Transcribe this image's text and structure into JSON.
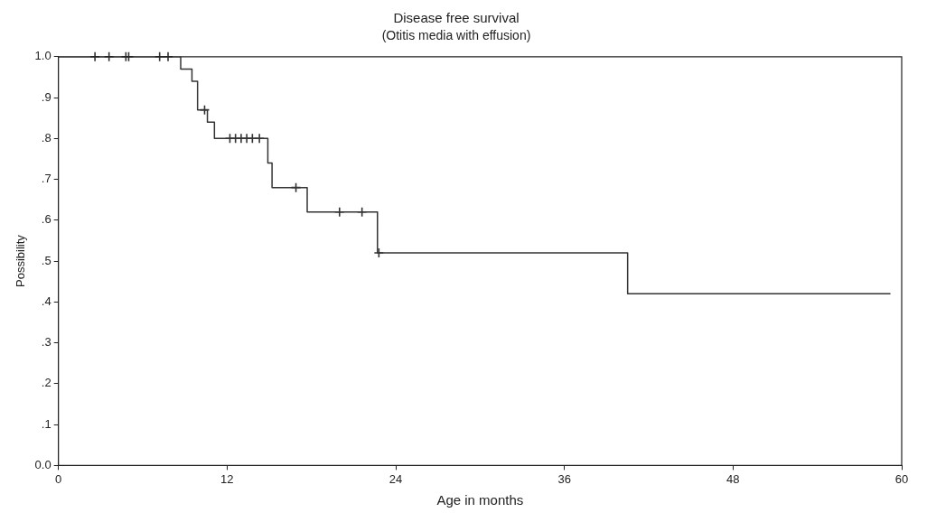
{
  "chart_data": {
    "type": "step",
    "title": "Disease free survival",
    "subtitle": "(Otitis media with effusion)",
    "xlabel": "Age in months",
    "ylabel": "Possibility",
    "xlim": [
      0,
      60
    ],
    "xticks": [
      0,
      12,
      24,
      36,
      48,
      60
    ],
    "ylim": [
      0,
      1
    ],
    "yticks": [
      {
        "value": 0,
        "label": "0.0"
      },
      {
        "value": 0.1,
        "label": ".1"
      },
      {
        "value": 0.2,
        "label": ".2"
      },
      {
        "value": 0.3,
        "label": ".3"
      },
      {
        "value": 0.4,
        "label": ".4"
      },
      {
        "value": 0.5,
        "label": ".5"
      },
      {
        "value": 0.6,
        "label": ".6"
      },
      {
        "value": 0.7,
        "label": ".7"
      },
      {
        "value": 0.8,
        "label": ".8"
      },
      {
        "value": 0.9,
        "label": ".9"
      },
      {
        "value": 1,
        "label": "1.0"
      }
    ],
    "grid": false,
    "legend": false,
    "series": [
      {
        "color": "#333333",
        "x": [
          0,
          8.7,
          9.5,
          9.9,
          10.6,
          11.1,
          14.9,
          15.2,
          17.7,
          22.7,
          40.5,
          59.2
        ],
        "values": [
          1,
          0.97,
          0.94,
          0.87,
          0.84,
          0.8,
          0.74,
          0.68,
          0.62,
          0.52,
          0.42,
          0.42
        ]
      },
      {
        "type": "scatter",
        "marker": "cross",
        "color": "#333333",
        "x": [
          2.6,
          3.6,
          4.8,
          5.0,
          7.2,
          7.8,
          10.4,
          12.2,
          12.6,
          13.0,
          13.4,
          13.8,
          14.3,
          16.9,
          20.0,
          21.6,
          22.8
        ],
        "values": [
          1,
          1,
          1,
          1,
          1,
          1,
          0.87,
          0.8,
          0.8,
          0.8,
          0.8,
          0.8,
          0.8,
          0.68,
          0.62,
          0.62,
          0.52
        ]
      }
    ]
  }
}
